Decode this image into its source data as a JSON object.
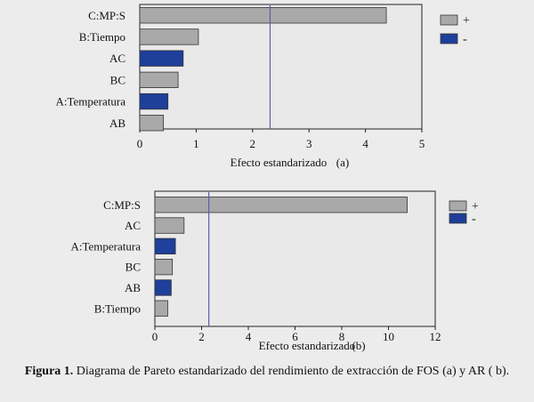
{
  "chart_data": [
    {
      "type": "bar",
      "orientation": "horizontal",
      "xlabel": "Efecto estandarizado",
      "panel_label": "(a)",
      "categories": [
        "C:MP:S",
        "B:Tiempo",
        "AC",
        "BC",
        "A:Temperatura",
        "AB"
      ],
      "values": [
        4.37,
        1.04,
        0.77,
        0.68,
        0.5,
        0.42
      ],
      "signs": [
        "+",
        "+",
        "-",
        "+",
        "-",
        "+"
      ],
      "xlim": [
        0,
        5
      ],
      "xticks": [
        0,
        1,
        2,
        3,
        4,
        5
      ],
      "reference_line": 2.31,
      "legend": [
        {
          "label": "+",
          "color": "#a9a9a9"
        },
        {
          "label": "-",
          "color": "#1e3f9a"
        }
      ]
    },
    {
      "type": "bar",
      "orientation": "horizontal",
      "xlabel": "Efecto estandarizado",
      "panel_label": "(b)",
      "categories": [
        "C:MP:S",
        "AC",
        "A:Temperatura",
        "BC",
        "AB",
        "B:Tiempo"
      ],
      "values": [
        10.8,
        1.25,
        0.88,
        0.75,
        0.7,
        0.55
      ],
      "signs": [
        "+",
        "+",
        "-",
        "+",
        "-",
        "+"
      ],
      "xlim": [
        0,
        12
      ],
      "xticks": [
        0,
        2,
        4,
        6,
        8,
        10,
        12
      ],
      "reference_line": 2.31,
      "legend": [
        {
          "label": "+",
          "color": "#a9a9a9"
        },
        {
          "label": "-",
          "color": "#1e3f9a"
        }
      ]
    }
  ],
  "caption": {
    "label": "Figura 1.",
    "text": " Diagrama de Pareto estandarizado del rendimiento de extracción de FOS (a) y AR ( b)."
  },
  "colors": {
    "positive": "#a9a9a9",
    "negative": "#1e3f9a",
    "reference_line": "#5b5fa8"
  }
}
